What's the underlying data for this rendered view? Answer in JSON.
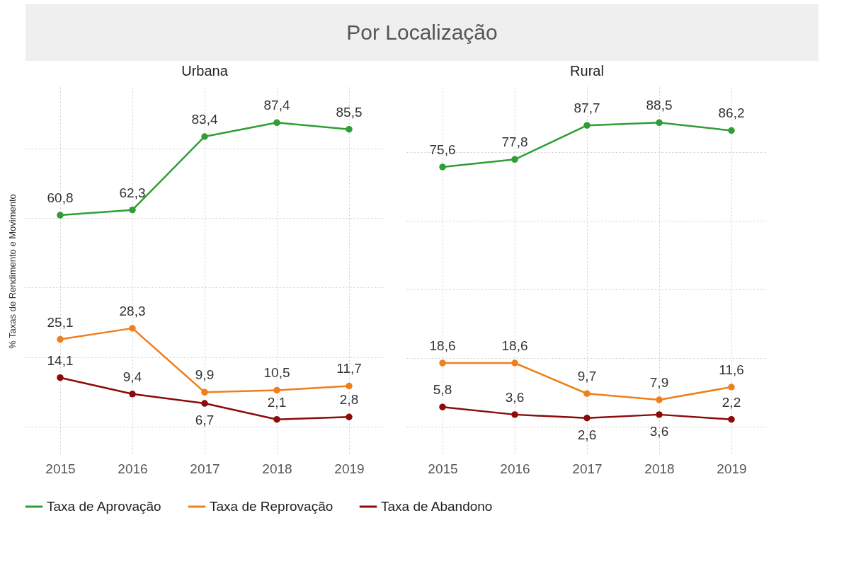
{
  "chart_data": [
    {
      "type": "line",
      "title": "Por Localização",
      "subtitle": "Urbana",
      "ylabel": "% Taxas de Rendimento e Movimento",
      "categories": [
        "2015",
        "2016",
        "2017",
        "2018",
        "2019"
      ],
      "series": [
        {
          "name": "Taxa de Aprovação",
          "color": "#2e9e35",
          "values": [
            60.8,
            62.3,
            83.4,
            87.4,
            85.5
          ],
          "value_labels": [
            "60,8",
            "62,3",
            "83,4",
            "87,4",
            "85,5"
          ]
        },
        {
          "name": "Taxa de Reprovação",
          "color": "#ee7f1a",
          "values": [
            25.1,
            28.3,
            9.9,
            10.5,
            11.7
          ],
          "value_labels": [
            "25,1",
            "28,3",
            "9,9",
            "10,5",
            "11,7"
          ]
        },
        {
          "name": "Taxa de Abandono",
          "color": "#8b0a0a",
          "values": [
            14.1,
            9.4,
            6.7,
            2.1,
            2.8
          ],
          "value_labels": [
            "14,1",
            "9,4",
            "6,7",
            "2,1",
            "2,8"
          ]
        }
      ],
      "tick_labels": "x",
      "grid": true,
      "marker": "circle",
      "line_style": "solid",
      "legend": "bottom"
    },
    {
      "type": "line",
      "subtitle": "Rural",
      "categories": [
        "2015",
        "2016",
        "2017",
        "2018",
        "2019"
      ],
      "series": [
        {
          "name": "Taxa de Aprovação",
          "color": "#2e9e35",
          "values": [
            75.6,
            77.8,
            87.7,
            88.5,
            86.2
          ],
          "value_labels": [
            "75,6",
            "77,8",
            "87,7",
            "88,5",
            "86,2"
          ]
        },
        {
          "name": "Taxa de Reprovação",
          "color": "#ee7f1a",
          "values": [
            18.6,
            18.6,
            9.7,
            7.9,
            11.6
          ],
          "value_labels": [
            "18,6",
            "18,6",
            "9,7",
            "7,9",
            "11,6"
          ]
        },
        {
          "name": "Taxa de Abandono",
          "color": "#8b0a0a",
          "values": [
            5.8,
            3.6,
            2.6,
            3.6,
            2.2
          ],
          "value_labels": [
            "5,8",
            "3,6",
            "2,6",
            "3,6",
            "2,2"
          ]
        }
      ],
      "tick_labels": "x",
      "grid": true,
      "marker": "circle",
      "line_style": "solid",
      "legend": "bottom"
    }
  ]
}
